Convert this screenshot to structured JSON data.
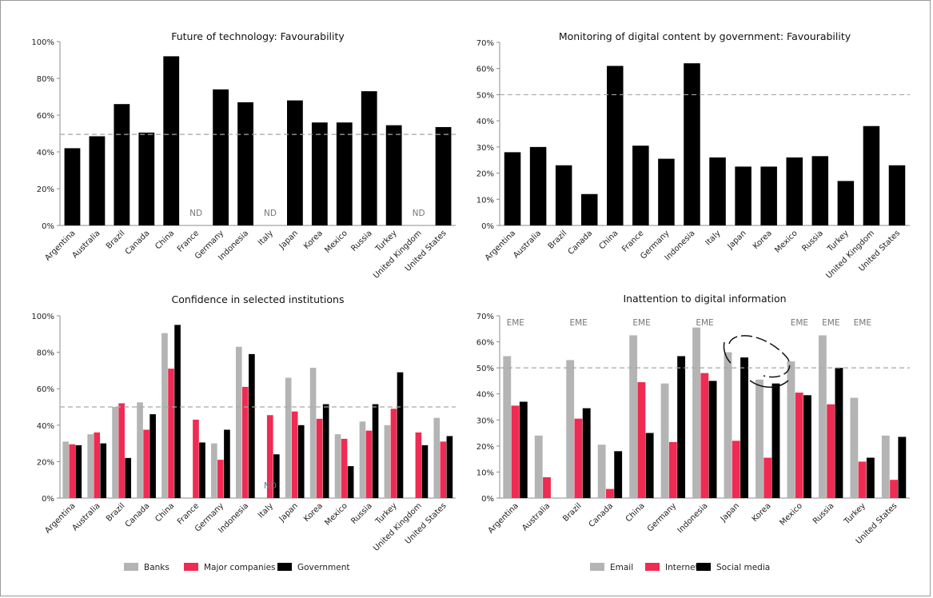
{
  "colors": {
    "banks": "#b4b4b4",
    "companies": "#ef2b53",
    "government": "#000000",
    "black": "#000000",
    "reference_line": "#a6a6a6",
    "axis": "#8c8c8c"
  },
  "chart_data": [
    {
      "type": "bar",
      "title": "Future of technology: Favourability",
      "categories": [
        "Argentina",
        "Australia",
        "Brazil",
        "Canada",
        "China",
        "France",
        "Germany",
        "Indonesia",
        "Italy",
        "Japan",
        "Korea",
        "Mexico",
        "Russia",
        "Turkey",
        "United Kingdom",
        "United States"
      ],
      "series": [
        {
          "values": [
            42,
            48.5,
            66,
            50.5,
            92,
            null,
            74,
            67,
            null,
            68,
            56,
            56,
            73,
            54.5,
            null,
            53.5
          ]
        }
      ],
      "ylim": [
        0,
        100
      ],
      "yticks": [
        "0%",
        "20%",
        "40%",
        "60%",
        "80%",
        "100%"
      ],
      "reference_line": 49.5,
      "annotations": [
        {
          "category": "France",
          "text": "ND"
        },
        {
          "category": "Italy",
          "text": "ND"
        },
        {
          "category": "United Kingdom",
          "text": "ND"
        }
      ],
      "grid": false
    },
    {
      "type": "bar",
      "title": "Monitoring of digital content by government: Favourability",
      "categories": [
        "Argentina",
        "Australia",
        "Brazil",
        "Canada",
        "China",
        "France",
        "Germany",
        "Indonesia",
        "Italy",
        "Japan",
        "Korea",
        "Mexico",
        "Russia",
        "Turkey",
        "United Kingdom",
        "United States"
      ],
      "series": [
        {
          "values": [
            28,
            30,
            23,
            12,
            61,
            30.5,
            25.5,
            62,
            26,
            22.5,
            22.5,
            26,
            26.5,
            17,
            38,
            23
          ]
        }
      ],
      "ylim": [
        0,
        70
      ],
      "yticks": [
        "0%",
        "10%",
        "20%",
        "30%",
        "40%",
        "50%",
        "60%",
        "70%"
      ],
      "reference_line": 50,
      "annotations": [],
      "grid": false
    },
    {
      "type": "bar",
      "title": "Confidence in selected institutions",
      "categories": [
        "Argentina",
        "Australia",
        "Brazil",
        "Canada",
        "China",
        "France",
        "Germany",
        "Indonesia",
        "Italy",
        "Japan",
        "Korea",
        "Mexico",
        "Russia",
        "Turkey",
        "United Kingdom",
        "United States"
      ],
      "series": [
        {
          "name": "Banks",
          "values": [
            31,
            35,
            50,
            52.5,
            90.5,
            null,
            30,
            83,
            null,
            66,
            71.5,
            35,
            42,
            40,
            null,
            44
          ]
        },
        {
          "name": "Major companies",
          "values": [
            29.5,
            36,
            52,
            37.5,
            71,
            43,
            21,
            61,
            45.5,
            47.5,
            43.5,
            32.5,
            37,
            49,
            36,
            31
          ]
        },
        {
          "name": "Government",
          "values": [
            29,
            30,
            22,
            46,
            95,
            30.5,
            37.5,
            79,
            24,
            40,
            51.5,
            17.5,
            51.5,
            69,
            29,
            34
          ]
        }
      ],
      "ylim": [
        0,
        100
      ],
      "yticks": [
        "0%",
        "20%",
        "40%",
        "60%",
        "80%",
        "100%"
      ],
      "reference_line": 50,
      "annotations": [
        {
          "category": "Italy",
          "text": "ND"
        }
      ],
      "legend": [
        "Banks",
        "Major companies",
        "Government"
      ],
      "legend_position": "bottom",
      "grid": false
    },
    {
      "type": "bar",
      "title": "Inattention to digital information",
      "categories": [
        "Argentina",
        "Australia",
        "Brazil",
        "Canada",
        "China",
        "Germany",
        "Indonesia",
        "Japan",
        "Korea",
        "Mexico",
        "Russia",
        "Turkey",
        "United States"
      ],
      "series": [
        {
          "name": "Email",
          "values": [
            54.5,
            24,
            53,
            20.5,
            62.5,
            44,
            65.5,
            56,
            45.5,
            52.5,
            62.5,
            38.5,
            24
          ]
        },
        {
          "name": "Internet",
          "values": [
            35.5,
            8,
            30.5,
            3.5,
            44.5,
            21.5,
            48,
            22,
            15.5,
            40.5,
            36,
            14,
            7
          ]
        },
        {
          "name": "Social media",
          "values": [
            37,
            null,
            34.5,
            18,
            25,
            54.5,
            45,
            54,
            44,
            39.5,
            50,
            15.5,
            23.5
          ]
        }
      ],
      "ylim": [
        0,
        70
      ],
      "yticks": [
        "0%",
        "10%",
        "20%",
        "30%",
        "40%",
        "50%",
        "60%",
        "70%"
      ],
      "reference_line": 50,
      "annotations": [
        {
          "category": "Argentina",
          "text": "EME"
        },
        {
          "category": "Brazil",
          "text": "EME"
        },
        {
          "category": "China",
          "text": "EME"
        },
        {
          "category": "Indonesia",
          "text": "EME"
        },
        {
          "category": "Mexico",
          "text": "EME"
        },
        {
          "category": "Russia",
          "text": "EME"
        },
        {
          "category": "Turkey",
          "text": "EME"
        }
      ],
      "legend": [
        "Email",
        "Internet",
        "Social media"
      ],
      "legend_position": "bottom",
      "grid": false
    }
  ]
}
